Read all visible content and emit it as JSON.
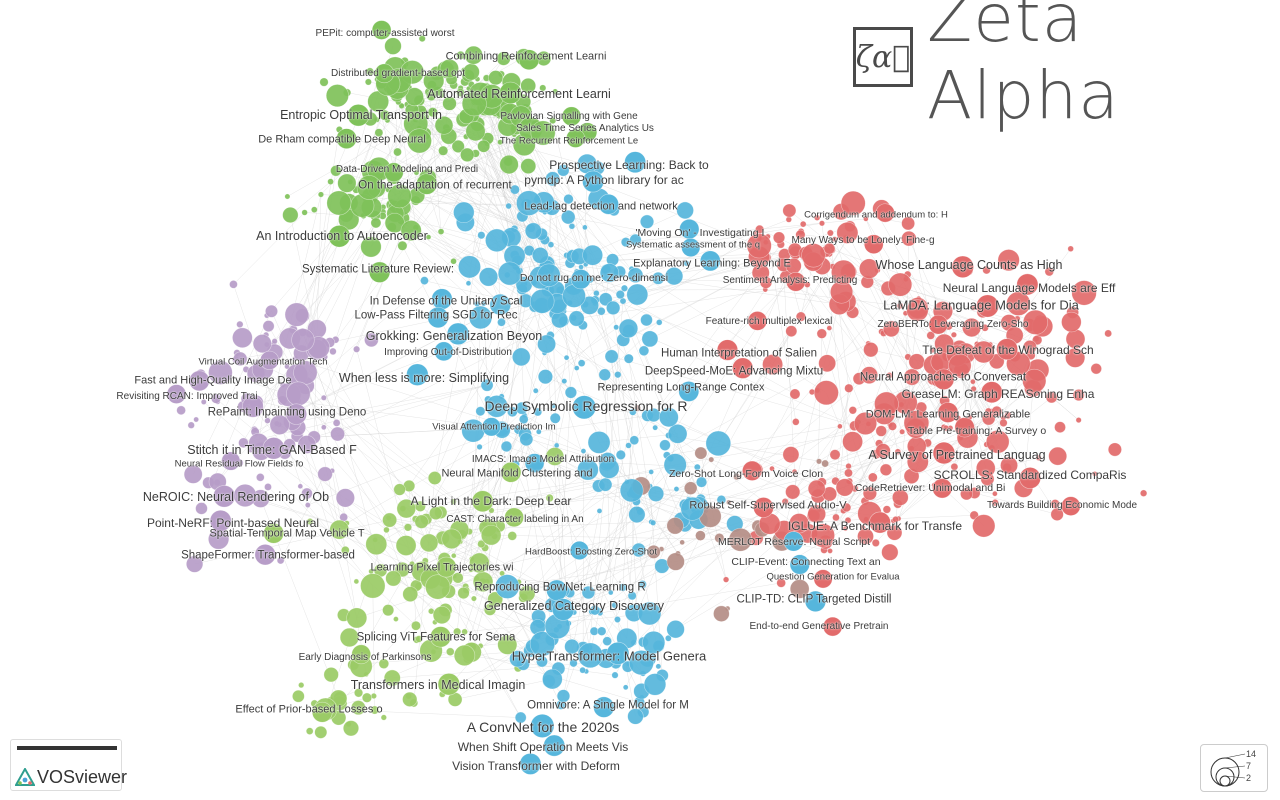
{
  "brand": {
    "name": "Zeta Alpha",
    "mark": "ζα⃗"
  },
  "app": {
    "name": "VOSviewer"
  },
  "size_legend": {
    "values": [
      "14",
      "7",
      "2"
    ]
  },
  "clusters": {
    "green": {
      "color": "#7fc25a"
    },
    "blue": {
      "color": "#56b6dc"
    },
    "red": {
      "color": "#e26b6b"
    },
    "purple": {
      "color": "#b79dc8"
    },
    "lime": {
      "color": "#9bcb66"
    },
    "brown": {
      "color": "#b58e86"
    }
  },
  "labels": [
    {
      "text": "PEPit: computer-assisted worst",
      "cluster": "green"
    },
    {
      "text": "Combining Reinforcement Learni",
      "cluster": "green"
    },
    {
      "text": "Distributed gradient-based opt",
      "cluster": "green"
    },
    {
      "text": "Automated Reinforcement Learni",
      "cluster": "green"
    },
    {
      "text": "Entropic Optimal Transport in",
      "cluster": "green"
    },
    {
      "text": "Pavlovian Signalling with Gene",
      "cluster": "green"
    },
    {
      "text": "Sales Time Series Analytics Us",
      "cluster": "green"
    },
    {
      "text": "De Rham compatible Deep Neural",
      "cluster": "green"
    },
    {
      "text": "The Recurrent Reinforcement Le",
      "cluster": "green"
    },
    {
      "text": "Prospective Learning: Back to",
      "cluster": "blue"
    },
    {
      "text": "Data-Driven Modeling and Predi",
      "cluster": "green"
    },
    {
      "text": "pymdp: A Python library for ac",
      "cluster": "blue"
    },
    {
      "text": "On the adaptation of recurrent",
      "cluster": "green"
    },
    {
      "text": "Lead-lag detection and network",
      "cluster": "blue"
    },
    {
      "text": "Corrigendum and addendum to: H",
      "cluster": "red"
    },
    {
      "text": "'Moving On' - Investigating I",
      "cluster": "blue"
    },
    {
      "text": "An Introduction to Autoencoder",
      "cluster": "green"
    },
    {
      "text": "Many Ways to be Lonely: Fine-g",
      "cluster": "red"
    },
    {
      "text": "Systematic assessment of the q",
      "cluster": "blue"
    },
    {
      "text": "Explanatory Learning: Beyond E",
      "cluster": "blue"
    },
    {
      "text": "Whose Language Counts as High",
      "cluster": "red"
    },
    {
      "text": "Systematic Literature Review:",
      "cluster": "green"
    },
    {
      "text": "Do not rug on me: Zero-dimensi",
      "cluster": "blue"
    },
    {
      "text": "Sentiment Analysis: Predicting",
      "cluster": "red"
    },
    {
      "text": "Neural Language Models are Eff",
      "cluster": "red"
    },
    {
      "text": "In Defense of the Unitary Scal",
      "cluster": "blue"
    },
    {
      "text": "LaMDA: Language Models for Dia",
      "cluster": "red"
    },
    {
      "text": "Low-Pass Filtering SGD for Rec",
      "cluster": "blue"
    },
    {
      "text": "Feature-rich multiplex lexical",
      "cluster": "red"
    },
    {
      "text": "ZeroBERTo: Leveraging Zero-Sho",
      "cluster": "red"
    },
    {
      "text": "Grokking: Generalization Beyon",
      "cluster": "blue"
    },
    {
      "text": "The Defeat of the Winograd Sch",
      "cluster": "red"
    },
    {
      "text": "Improving Out-of-Distribution",
      "cluster": "blue"
    },
    {
      "text": "Human Interpretation of Salien",
      "cluster": "red"
    },
    {
      "text": "Virtual Coil Augmentation Tech",
      "cluster": "purple"
    },
    {
      "text": "DeepSpeed-MoE: Advancing Mixtu",
      "cluster": "red"
    },
    {
      "text": "When less is more: Simplifying",
      "cluster": "blue"
    },
    {
      "text": "Neural Approaches to Conversat",
      "cluster": "red"
    },
    {
      "text": "Fast and High-Quality Image De",
      "cluster": "purple"
    },
    {
      "text": "Representing Long-Range Contex",
      "cluster": "blue"
    },
    {
      "text": "GreaseLM: Graph REASoning Enha",
      "cluster": "red"
    },
    {
      "text": "Revisiting RCAN: Improved Trai",
      "cluster": "purple"
    },
    {
      "text": "Deep Symbolic Regression for R",
      "cluster": "blue"
    },
    {
      "text": "RePaint: Inpainting using Deno",
      "cluster": "purple"
    },
    {
      "text": "DOM-LM: Learning Generalizable",
      "cluster": "red"
    },
    {
      "text": "Visual Attention Prediction Im",
      "cluster": "blue"
    },
    {
      "text": "Table Pre-training: A Survey o",
      "cluster": "red"
    },
    {
      "text": "Stitch it in Time: GAN-Based F",
      "cluster": "purple"
    },
    {
      "text": "A Survey of Pretrained Languag",
      "cluster": "red"
    },
    {
      "text": "IMACS: Image Model Attribution",
      "cluster": "blue"
    },
    {
      "text": "Neural Residual Flow Fields fo",
      "cluster": "purple"
    },
    {
      "text": "Neural Manifold Clustering and",
      "cluster": "lime"
    },
    {
      "text": "Zero-Shot Long-Form Voice Clon",
      "cluster": "red"
    },
    {
      "text": "SCROLLS: Standardized CompaRis",
      "cluster": "red"
    },
    {
      "text": "CodeRetriever: Unimodal and Bi",
      "cluster": "red"
    },
    {
      "text": "NeROIC: Neural Rendering of Ob",
      "cluster": "purple"
    },
    {
      "text": "A Light in the Dark: Deep Lear",
      "cluster": "lime"
    },
    {
      "text": "Robust Self-Supervised Audio-V",
      "cluster": "red"
    },
    {
      "text": "Towards Building Economic Mode",
      "cluster": "red"
    },
    {
      "text": "CAST: Character labeling in An",
      "cluster": "lime"
    },
    {
      "text": "Point-NeRF: Point-based Neural",
      "cluster": "purple"
    },
    {
      "text": "IGLUE: A Benchmark for Transfe",
      "cluster": "red"
    },
    {
      "text": "Spatial-Temporal Map Vehicle T",
      "cluster": "lime"
    },
    {
      "text": "MERLOT Reserve: Neural Script",
      "cluster": "blue"
    },
    {
      "text": "HardBoost: Boosting Zero-Shot",
      "cluster": "blue"
    },
    {
      "text": "ShapeFormer: Transformer-based",
      "cluster": "purple"
    },
    {
      "text": "CLIP-Event: Connecting Text an",
      "cluster": "blue"
    },
    {
      "text": "Learning Pixel Trajectories wi",
      "cluster": "lime"
    },
    {
      "text": "Question Generation for Evalua",
      "cluster": "red"
    },
    {
      "text": "Reproducing BowNet: Learning R",
      "cluster": "blue"
    },
    {
      "text": "CLIP-TD: CLIP Targeted Distill",
      "cluster": "blue"
    },
    {
      "text": "Generalized Category Discovery",
      "cluster": "blue"
    },
    {
      "text": "End-to-end Generative Pretrain",
      "cluster": "red"
    },
    {
      "text": "Splicing ViT Features for Sema",
      "cluster": "lime"
    },
    {
      "text": "Early Diagnosis of Parkinsons",
      "cluster": "lime"
    },
    {
      "text": "HyperTransformer: Model Genera",
      "cluster": "blue"
    },
    {
      "text": "Transformers in Medical Imagin",
      "cluster": "lime"
    },
    {
      "text": "Omnivore: A Single Model for M",
      "cluster": "blue"
    },
    {
      "text": "Effect of Prior-based Losses o",
      "cluster": "lime"
    },
    {
      "text": "A ConvNet for the 2020s",
      "cluster": "blue"
    },
    {
      "text": "When Shift Operation Meets Vis",
      "cluster": "blue"
    },
    {
      "text": "Vision Transformer with Deform",
      "cluster": "blue"
    }
  ]
}
